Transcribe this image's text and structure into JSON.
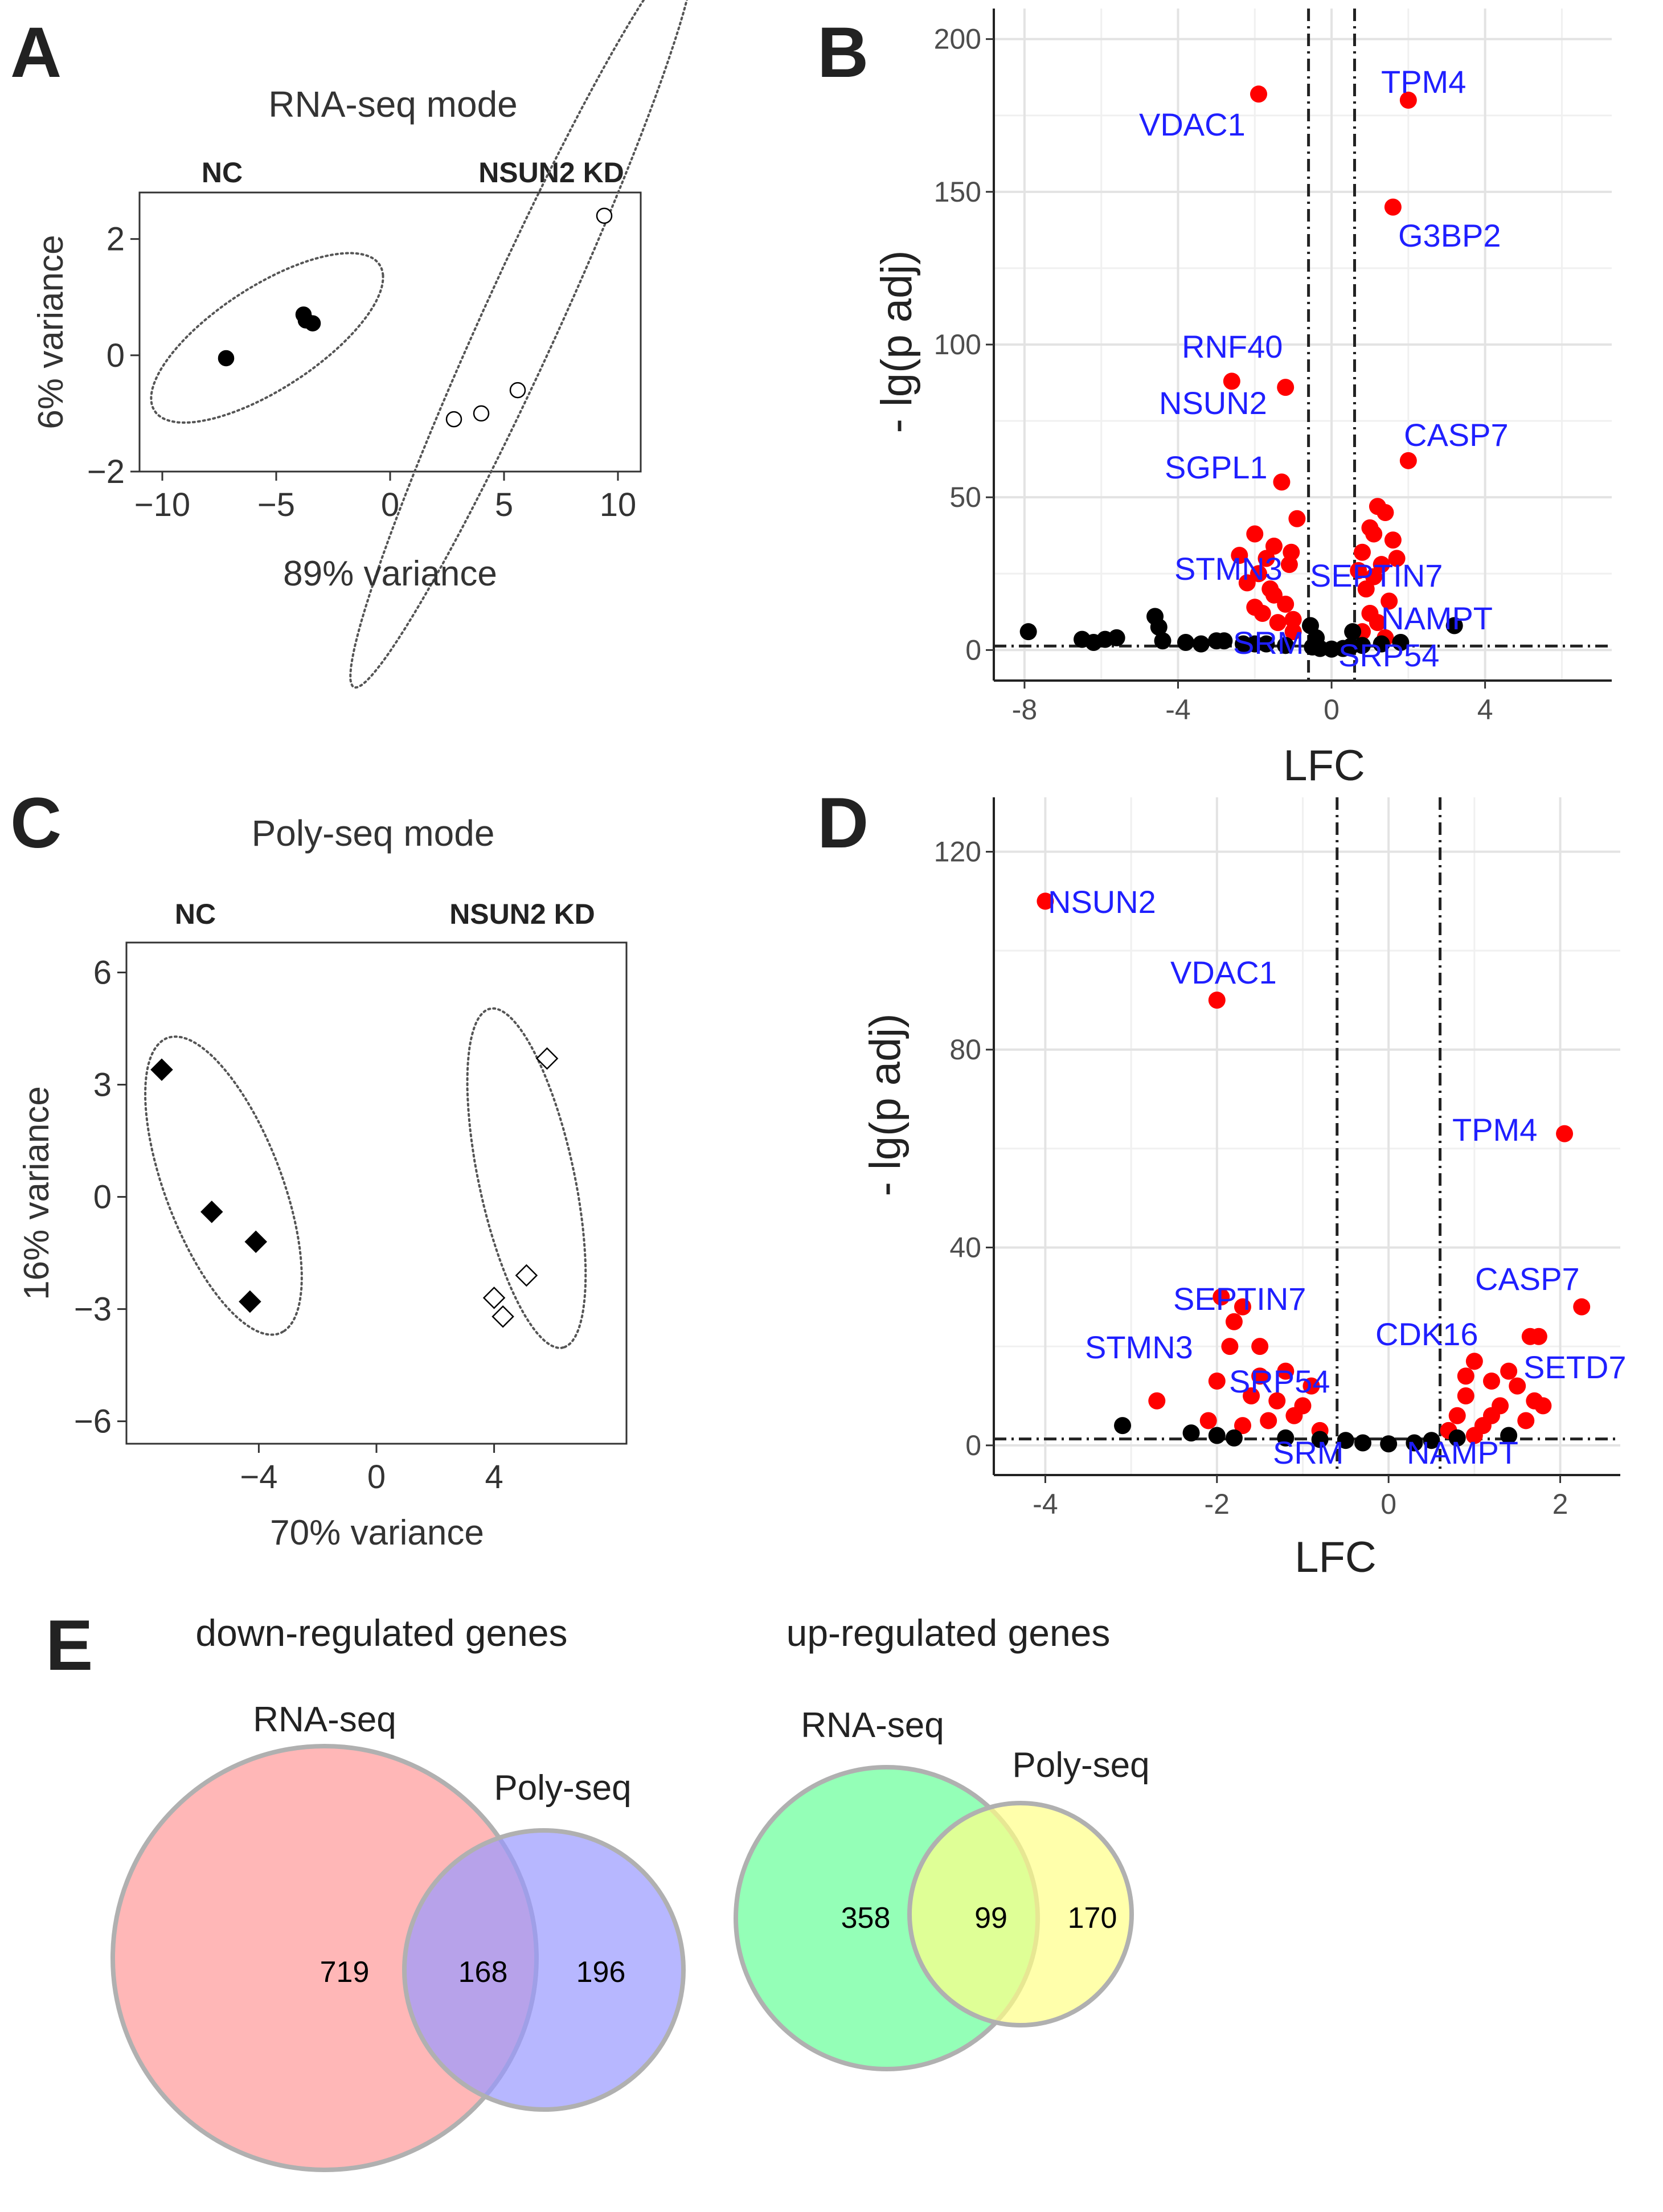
{
  "panels": {
    "A": {
      "letter": "A",
      "title": "RNA-seq mode",
      "group_nc": "NC",
      "group_kd": "NSUN2 KD",
      "xlabel": "89% variance",
      "ylabel": "6% variance"
    },
    "B": {
      "letter": "B",
      "xlabel": "LFC",
      "ylabel": "- lg(p adj)"
    },
    "C": {
      "letter": "C",
      "title": "Poly-seq mode",
      "group_nc": "NC",
      "group_kd": "NSUN2 KD",
      "xlabel": "70% variance",
      "ylabel": "16% variance"
    },
    "D": {
      "letter": "D",
      "xlabel": "LFC",
      "ylabel": "- lg(p adj)"
    },
    "E": {
      "letter": "E",
      "down_title": "down-regulated genes",
      "up_title": "up-regulated genes",
      "set_rna": "RNA-seq",
      "set_poly": "Poly-seq",
      "down_only_rna": "719",
      "down_overlap": "168",
      "down_only_poly": "196",
      "up_only_rna": "358",
      "up_overlap": "99",
      "up_only_poly": "170"
    }
  },
  "colors": {
    "significant": "#ff0000",
    "nonsignificant": "#000000",
    "gene_label": "#1f1fff",
    "venn_down_rna": "#ff9999",
    "venn_down_poly": "#9999ff",
    "venn_up_rna": "#66ff99",
    "venn_up_poly": "#ffff88"
  },
  "chart_data": [
    {
      "id": "A",
      "type": "scatter",
      "title": "RNA-seq mode",
      "xlabel": "89% variance",
      "ylabel": "6% variance",
      "xlim": [
        -11,
        11
      ],
      "ylim": [
        -2,
        2.8
      ],
      "xticks": [
        -10,
        -5,
        0,
        5,
        10
      ],
      "yticks": [
        -2,
        0,
        2
      ],
      "xtick_labels": [
        "−10",
        "−5",
        "0",
        "5",
        "10"
      ],
      "ytick_labels": [
        "−2",
        "0",
        "2"
      ],
      "series": [
        {
          "name": "NC",
          "marker": "filled-circle",
          "points": [
            [
              -7.2,
              -0.05
            ],
            [
              -3.8,
              0.7
            ],
            [
              -3.7,
              0.6
            ],
            [
              -3.4,
              0.55
            ]
          ]
        },
        {
          "name": "NSUN2 KD",
          "marker": "open-circle",
          "points": [
            [
              2.8,
              -1.1
            ],
            [
              4.0,
              -1.0
            ],
            [
              5.6,
              -0.6
            ],
            [
              9.4,
              2.4
            ]
          ]
        }
      ],
      "ellipses": [
        {
          "group": "NC",
          "cx": -5.4,
          "cy": 0.3,
          "rx": 5.2,
          "ry": 1.0,
          "angle": 12
        },
        {
          "group": "NSUN2 KD",
          "cx": 5.8,
          "cy": 0.65,
          "rx": 9.8,
          "ry": 1.2,
          "angle": 40
        }
      ]
    },
    {
      "id": "B",
      "type": "scatter",
      "xlabel": "LFC",
      "ylabel": "- lg(p adj)",
      "xlim": [
        -8.8,
        7.3
      ],
      "ylim": [
        -10,
        210
      ],
      "xticks": [
        -8,
        -4,
        0,
        4
      ],
      "yticks": [
        0,
        50,
        100,
        150,
        200
      ],
      "xtick_labels": [
        "-8",
        "-4",
        "0",
        "4"
      ],
      "ytick_labels": [
        "0",
        "50",
        "100",
        "150",
        "200"
      ],
      "vlines": [
        -0.6,
        0.6
      ],
      "hline": 1.3,
      "series": [
        {
          "name": "significant",
          "points": [
            [
              -1.9,
              182
            ],
            [
              2.0,
              180
            ],
            [
              1.6,
              145
            ],
            [
              -2.6,
              88
            ],
            [
              -1.2,
              86
            ],
            [
              2.0,
              62
            ],
            [
              -1.3,
              55
            ],
            [
              -2.0,
              38
            ],
            [
              -1.5,
              34
            ],
            [
              -2.4,
              31
            ],
            [
              -1.1,
              28
            ],
            [
              -1.9,
              25
            ],
            [
              -1.6,
              20
            ],
            [
              -1.2,
              15
            ],
            [
              -1.8,
              12
            ],
            [
              -1.4,
              9
            ],
            [
              -1.0,
              6
            ],
            [
              -2.2,
              22
            ],
            [
              -1.7,
              30
            ],
            [
              -0.9,
              43
            ],
            [
              -1.05,
              32
            ],
            [
              -1.5,
              18
            ],
            [
              -1.0,
              10
            ],
            [
              -2.0,
              14
            ],
            [
              1.2,
              47
            ],
            [
              1.4,
              45
            ],
            [
              1.0,
              40
            ],
            [
              1.6,
              36
            ],
            [
              0.8,
              32
            ],
            [
              1.3,
              28
            ],
            [
              1.1,
              24
            ],
            [
              0.9,
              20
            ],
            [
              1.5,
              16
            ],
            [
              1.0,
              12
            ],
            [
              1.2,
              9
            ],
            [
              0.8,
              6
            ],
            [
              1.4,
              4
            ],
            [
              1.7,
              30
            ],
            [
              1.1,
              38
            ],
            [
              0.7,
              26
            ]
          ]
        },
        {
          "name": "nonsignificant",
          "points": [
            [
              -7.9,
              6
            ],
            [
              -6.5,
              3.5
            ],
            [
              -6.2,
              2.5
            ],
            [
              -5.9,
              3.5
            ],
            [
              -5.6,
              4
            ],
            [
              -4.6,
              11
            ],
            [
              -4.5,
              7.5
            ],
            [
              -4.4,
              3
            ],
            [
              -3.8,
              2.5
            ],
            [
              -3.4,
              2
            ],
            [
              -3.0,
              3
            ],
            [
              -2.8,
              3
            ],
            [
              -2.3,
              2
            ],
            [
              -2.0,
              2
            ],
            [
              -1.7,
              2
            ],
            [
              -1.2,
              1.5
            ],
            [
              -0.5,
              1
            ],
            [
              -0.3,
              0.5
            ],
            [
              0.0,
              0.3
            ],
            [
              0.3,
              0.5
            ],
            [
              0.5,
              1.2
            ],
            [
              0.8,
              1.5
            ],
            [
              1.3,
              2
            ],
            [
              1.8,
              2.5
            ],
            [
              3.2,
              8
            ],
            [
              -0.4,
              4
            ],
            [
              -0.55,
              8
            ],
            [
              0.55,
              6
            ]
          ]
        }
      ],
      "labels": [
        {
          "text": "VDAC1",
          "x": -1.9,
          "y": 182
        },
        {
          "text": "TPM4",
          "x": 2.0,
          "y": 180
        },
        {
          "text": "G3BP2",
          "x": 1.6,
          "y": 145
        },
        {
          "text": "RNF40",
          "x": -2.6,
          "y": 88
        },
        {
          "text": "NSUN2",
          "x": -1.2,
          "y": 86
        },
        {
          "text": "CASP7",
          "x": 2.0,
          "y": 62
        },
        {
          "text": "SGPL1",
          "x": -1.3,
          "y": 55
        },
        {
          "text": "STMN3",
          "x": -2.4,
          "y": 31
        },
        {
          "text": "SEPTIN7",
          "x": -0.9,
          "y": 28
        },
        {
          "text": "NAMPT",
          "x": 1.5,
          "y": 12
        },
        {
          "text": "SRM",
          "x": -1.5,
          "y": 5
        },
        {
          "text": "SRP54",
          "x": 0.7,
          "y": 3
        }
      ]
    },
    {
      "id": "C",
      "type": "scatter",
      "title": "Poly-seq mode",
      "xlabel": "70% variance",
      "ylabel": "16% variance",
      "xlim": [
        -8.5,
        8.5
      ],
      "ylim": [
        -6.6,
        6.8
      ],
      "xticks": [
        -4,
        0,
        4
      ],
      "yticks": [
        -6,
        -3,
        0,
        3,
        6
      ],
      "xtick_labels": [
        "−4",
        "0",
        "4"
      ],
      "ytick_labels": [
        "−6",
        "−3",
        "0",
        "3",
        "6"
      ],
      "series": [
        {
          "name": "NC",
          "marker": "filled-diamond",
          "points": [
            [
              -7.3,
              3.4
            ],
            [
              -5.6,
              -0.4
            ],
            [
              -4.1,
              -1.2
            ],
            [
              -4.3,
              -2.8
            ]
          ]
        },
        {
          "name": "NSUN2 KD",
          "marker": "open-diamond",
          "points": [
            [
              5.8,
              3.7
            ],
            [
              5.1,
              -2.1
            ],
            [
              4.0,
              -2.7
            ],
            [
              4.3,
              -3.2
            ]
          ]
        }
      ],
      "ellipses": [
        {
          "group": "NC",
          "cx": -5.2,
          "cy": 0.3,
          "rx": 4.4,
          "ry": 1.9,
          "angle": -62
        },
        {
          "group": "NSUN2 KD",
          "cx": 5.1,
          "cy": 0.5,
          "rx": 4.7,
          "ry": 1.6,
          "angle": -74
        }
      ]
    },
    {
      "id": "D",
      "type": "scatter",
      "xlabel": "LFC",
      "ylabel": "- lg(p adj)",
      "xlim": [
        -4.6,
        2.7
      ],
      "ylim": [
        -6,
        131
      ],
      "xticks": [
        -4,
        -2,
        0,
        2
      ],
      "yticks": [
        0,
        40,
        80,
        120
      ],
      "xtick_labels": [
        "-4",
        "-2",
        "0",
        "2"
      ],
      "ytick_labels": [
        "0",
        "40",
        "80",
        "120"
      ],
      "vlines": [
        -0.6,
        0.6
      ],
      "hline": 1.3,
      "series": [
        {
          "name": "significant",
          "points": [
            [
              -4.0,
              110
            ],
            [
              -2.0,
              90
            ],
            [
              2.05,
              63
            ],
            [
              2.25,
              28
            ],
            [
              1.75,
              22
            ],
            [
              1.65,
              22
            ],
            [
              -1.7,
              28
            ],
            [
              -1.95,
              30
            ],
            [
              -1.8,
              25
            ],
            [
              -1.85,
              20
            ],
            [
              -1.5,
              20
            ],
            [
              -2.0,
              13
            ],
            [
              -2.7,
              9
            ],
            [
              -1.6,
              10
            ],
            [
              -1.2,
              15
            ],
            [
              -1.0,
              8
            ],
            [
              -1.4,
              5
            ],
            [
              -0.9,
              12
            ],
            [
              -1.1,
              6
            ],
            [
              -1.7,
              4
            ],
            [
              -0.8,
              3
            ],
            [
              -1.3,
              9
            ],
            [
              -1.5,
              14
            ],
            [
              -2.1,
              5
            ],
            [
              1.0,
              17
            ],
            [
              1.2,
              13
            ],
            [
              0.9,
              10
            ],
            [
              1.4,
              15
            ],
            [
              0.8,
              6
            ],
            [
              1.1,
              4
            ],
            [
              1.3,
              8
            ],
            [
              1.5,
              12
            ],
            [
              1.7,
              9
            ],
            [
              0.7,
              3
            ],
            [
              1.0,
              2
            ],
            [
              1.6,
              5
            ],
            [
              1.8,
              8
            ],
            [
              0.9,
              14
            ],
            [
              1.2,
              6
            ]
          ]
        },
        {
          "name": "nonsignificant",
          "points": [
            [
              -3.1,
              4
            ],
            [
              -2.3,
              2.5
            ],
            [
              -2.0,
              2
            ],
            [
              -1.8,
              1.5
            ],
            [
              -1.2,
              1.5
            ],
            [
              -0.8,
              1.2
            ],
            [
              -0.5,
              1
            ],
            [
              -0.3,
              0.5
            ],
            [
              0.0,
              0.3
            ],
            [
              0.3,
              0.5
            ],
            [
              0.5,
              1
            ],
            [
              0.8,
              1.5
            ],
            [
              1.4,
              2
            ]
          ]
        }
      ],
      "labels": [
        {
          "text": "NSUN2",
          "x": -4.0,
          "y": 110
        },
        {
          "text": "VDAC1",
          "x": -2.0,
          "y": 90
        },
        {
          "text": "TPM4",
          "x": 2.05,
          "y": 63
        },
        {
          "text": "CASP7",
          "x": 2.25,
          "y": 28
        },
        {
          "text": "SEPTIN7",
          "x": -1.7,
          "y": 28
        },
        {
          "text": "CDK16",
          "x": 1.0,
          "y": 17
        },
        {
          "text": "STMN3",
          "x": -1.95,
          "y": 20
        },
        {
          "text": "SETD7",
          "x": 1.75,
          "y": 22
        },
        {
          "text": "SRP54",
          "x": -1.5,
          "y": 10
        },
        {
          "text": "SRM",
          "x": -0.8,
          "y": 3
        },
        {
          "text": "NAMPT",
          "x": 0.7,
          "y": 3
        }
      ]
    },
    {
      "id": "E-down",
      "type": "venn",
      "title": "down-regulated genes",
      "sets": [
        "RNA-seq",
        "Poly-seq"
      ],
      "values": {
        "RNA-seq only": 719,
        "both": 168,
        "Poly-seq only": 196
      }
    },
    {
      "id": "E-up",
      "type": "venn",
      "title": "up-regulated genes",
      "sets": [
        "RNA-seq",
        "Poly-seq"
      ],
      "values": {
        "RNA-seq only": 358,
        "both": 99,
        "Poly-seq only": 170
      }
    }
  ]
}
